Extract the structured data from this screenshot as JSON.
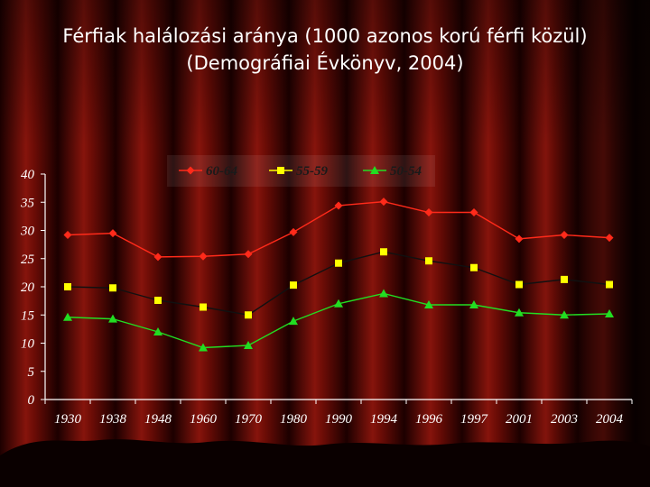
{
  "slide": {
    "title_line1": "Férfiak halálozási aránya  (1000 azonos korú férfi közül)",
    "title_line2": "(Demográfiai Évkönyv, 2004)"
  },
  "colors": {
    "s6064": "#ff2a1a",
    "s5559": "#ffff00",
    "s5054": "#22dd22",
    "line5559": "#111111"
  },
  "chart_data": {
    "type": "line",
    "title": "Férfiak halálozási aránya  (1000 azonos korú férfi közül)",
    "subtitle": "(Demográfiai Évkönyv, 2004)",
    "xlabel": "",
    "ylabel": "",
    "ylim": [
      0,
      40
    ],
    "yticks": [
      0,
      5,
      10,
      15,
      20,
      25,
      30,
      35,
      40
    ],
    "categories": [
      "1930",
      "1938",
      "1948",
      "1960",
      "1970",
      "1980",
      "1990",
      "1994",
      "1996",
      "1997",
      "2001",
      "2003",
      "2004"
    ],
    "legend_position": "top",
    "grid": false,
    "series": [
      {
        "name": "60-64",
        "marker": "diamond",
        "values": [
          29.2,
          29.5,
          25.3,
          25.4,
          25.8,
          29.7,
          34.4,
          35.1,
          33.2,
          33.2,
          28.5,
          29.2,
          28.7
        ]
      },
      {
        "name": "55-59",
        "marker": "square",
        "values": [
          20.0,
          19.8,
          17.6,
          16.4,
          15.0,
          20.3,
          24.2,
          26.2,
          24.6,
          23.4,
          20.4,
          21.3,
          20.4
        ]
      },
      {
        "name": "50-54",
        "marker": "triangle",
        "values": [
          14.6,
          14.3,
          12.0,
          9.2,
          9.6,
          13.9,
          17.0,
          18.8,
          16.8,
          16.8,
          15.4,
          15.0,
          15.2
        ]
      }
    ]
  }
}
